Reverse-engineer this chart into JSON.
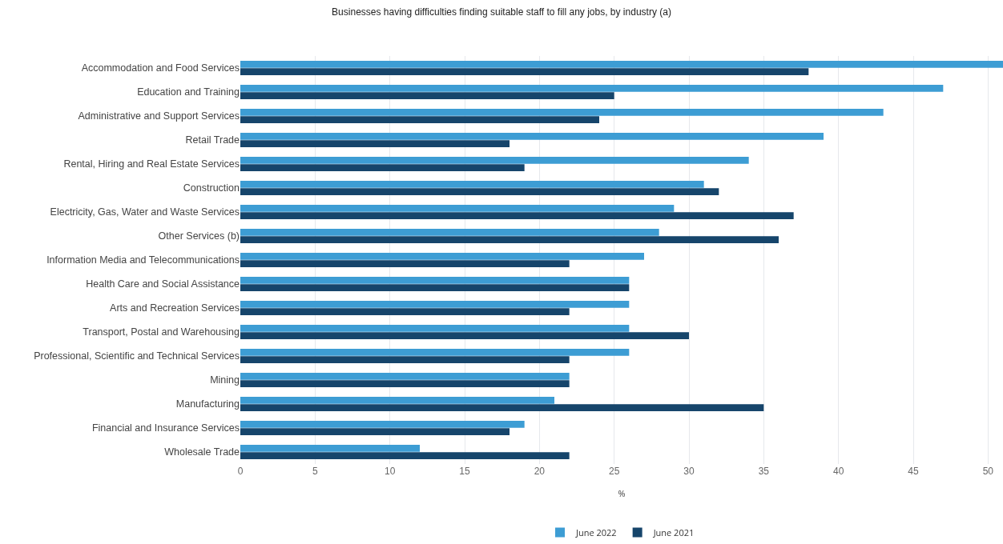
{
  "chart_data": {
    "type": "bar",
    "orientation": "horizontal",
    "title": "Businesses having difficulties finding suitable staff to fill any jobs, by industry (a)",
    "xlabel": "%",
    "categories": [
      "Accommodation and Food Services",
      "Education and Training",
      "Administrative and Support Services",
      "Retail Trade",
      "Rental, Hiring and Real Estate Services",
      "Construction",
      "Electricity, Gas, Water and Waste Services",
      "Other Services (b)",
      "Information Media and Telecommunications",
      "Health Care and Social Assistance",
      "Arts and Recreation Services",
      "Transport, Postal and Warehousing",
      "Professional, Scientific and Technical Services",
      "Mining",
      "Manufacturing",
      "Financial and Insurance Services",
      "Wholesale Trade"
    ],
    "series": [
      {
        "name": "June 2022",
        "color": "#3d9dd4",
        "values": [
          51,
          47,
          43,
          39,
          34,
          31,
          29,
          28,
          27,
          26,
          26,
          26,
          26,
          22,
          21,
          19,
          12
        ]
      },
      {
        "name": "June 2021",
        "color": "#16456b",
        "values": [
          38,
          25,
          24,
          18,
          19,
          32,
          37,
          36,
          22,
          26,
          22,
          30,
          22,
          22,
          35,
          18,
          22
        ]
      }
    ],
    "xlim": [
      0,
      51
    ],
    "xticks": [
      0,
      5,
      10,
      15,
      20,
      25,
      30,
      35,
      40,
      45,
      50
    ],
    "grid": "x",
    "legend": "bottom"
  }
}
